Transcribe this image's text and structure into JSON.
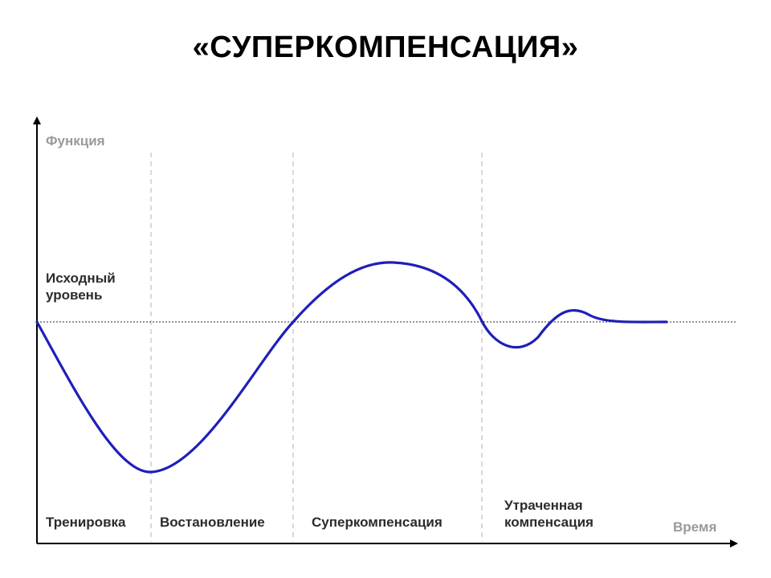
{
  "title": "«СУПЕРКОМПЕНСАЦИЯ»",
  "axes": {
    "y_label": "Функция",
    "x_label": "Время"
  },
  "baseline_label": {
    "line1": "Исходный",
    "line2": "уровень"
  },
  "phases": [
    {
      "line1": "Тренировка",
      "line2": ""
    },
    {
      "line1": "Востановление",
      "line2": ""
    },
    {
      "line1": "Суперкомпенсация",
      "line2": ""
    },
    {
      "line1": "Утраченная",
      "line2": "компенсация"
    }
  ],
  "colors": {
    "curve": "#1f1fb8",
    "axis": "#000000",
    "axis_caption": "#9a9a9a",
    "label": "#2b2b2b",
    "divider": "#bdbdbd"
  }
}
